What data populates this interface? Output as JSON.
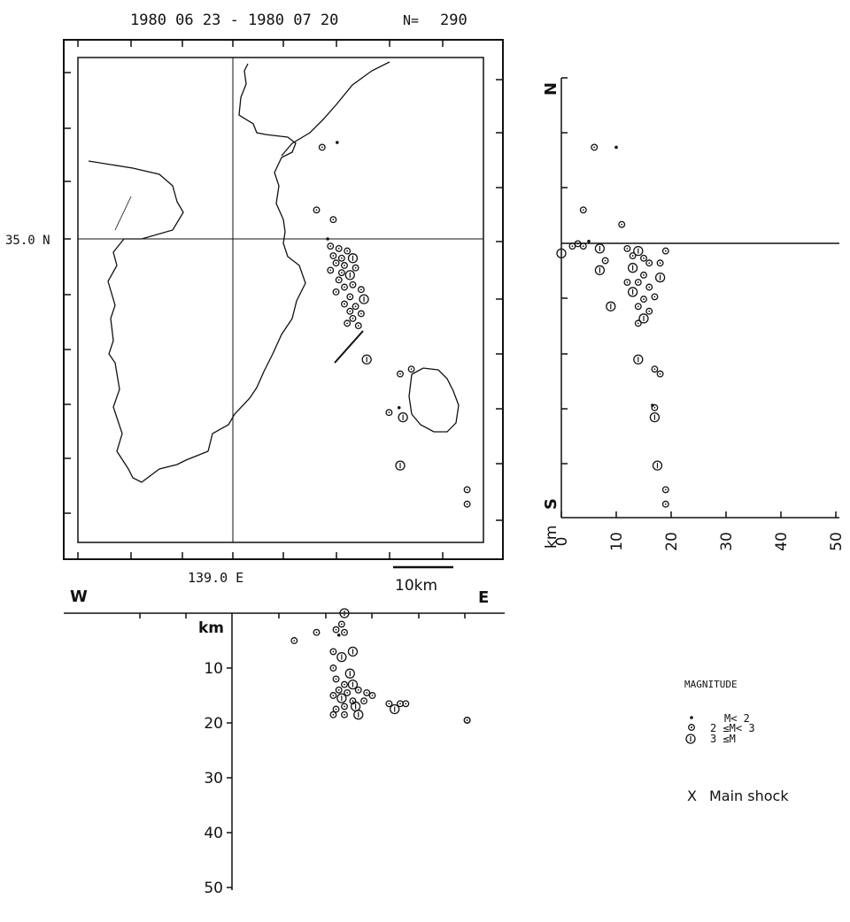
{
  "header": {
    "date_range": "1980 06 23 - 1980 07 20",
    "count_label": "N=",
    "count_value": "290"
  },
  "map": {
    "lat_label": "35.0 N",
    "lon_label": "139.0 E",
    "scale_label": "10km"
  },
  "ns_section": {
    "north_label": "N",
    "south_label": "S",
    "depth_unit": "km",
    "depth_ticks": [
      "0",
      "10",
      "20",
      "30",
      "40",
      "50"
    ]
  },
  "ew_section": {
    "west_label": "W",
    "east_label": "E",
    "depth_unit": "km",
    "depth_ticks": [
      "10",
      "20",
      "30",
      "40",
      "50"
    ]
  },
  "legend": {
    "title": "MAGNITUDE",
    "items": [
      {
        "label": "M< 2",
        "symbol": "dot"
      },
      {
        "label": "2 ≤M< 3",
        "symbol": "small-circle"
      },
      {
        "label": "3 ≤M",
        "symbol": "large-circle"
      }
    ],
    "main_shock_symbol": "X",
    "main_shock_label": "Main shock"
  },
  "chart_data": {
    "type": "scatter",
    "title": "1980 06 23 - 1980 07 20",
    "total_events": 290,
    "map_events": [
      {
        "lon": 139.16,
        "lat": 35.19,
        "mag": "2-3"
      },
      {
        "lon": 139.187,
        "lat": 35.2,
        "mag": "<2"
      },
      {
        "lon": 139.15,
        "lat": 35.06,
        "mag": "2-3"
      },
      {
        "lon": 139.18,
        "lat": 35.04,
        "mag": "2-3"
      },
      {
        "lon": 139.17,
        "lat": 35.0,
        "mag": "<2"
      },
      {
        "lon": 139.175,
        "lat": 34.985,
        "mag": "2-3"
      },
      {
        "lon": 139.19,
        "lat": 34.98,
        "mag": "2-3"
      },
      {
        "lon": 139.205,
        "lat": 34.975,
        "mag": "2-3"
      },
      {
        "lon": 139.18,
        "lat": 34.965,
        "mag": "2-3"
      },
      {
        "lon": 139.195,
        "lat": 34.96,
        "mag": "2-3"
      },
      {
        "lon": 139.215,
        "lat": 34.96,
        "mag": "3+"
      },
      {
        "lon": 139.185,
        "lat": 34.95,
        "mag": "2-3"
      },
      {
        "lon": 139.2,
        "lat": 34.945,
        "mag": "2-3"
      },
      {
        "lon": 139.22,
        "lat": 34.94,
        "mag": "2-3"
      },
      {
        "lon": 139.175,
        "lat": 34.935,
        "mag": "2-3"
      },
      {
        "lon": 139.195,
        "lat": 34.93,
        "mag": "2-3"
      },
      {
        "lon": 139.21,
        "lat": 34.925,
        "mag": "3+"
      },
      {
        "lon": 139.19,
        "lat": 34.915,
        "mag": "2-3"
      },
      {
        "lon": 139.215,
        "lat": 34.905,
        "mag": "2-3"
      },
      {
        "lon": 139.2,
        "lat": 34.9,
        "mag": "2-3"
      },
      {
        "lon": 139.23,
        "lat": 34.895,
        "mag": "2-3"
      },
      {
        "lon": 139.185,
        "lat": 34.89,
        "mag": "2-3"
      },
      {
        "lon": 139.21,
        "lat": 34.88,
        "mag": "2-3"
      },
      {
        "lon": 139.235,
        "lat": 34.875,
        "mag": "3+"
      },
      {
        "lon": 139.2,
        "lat": 34.865,
        "mag": "2-3"
      },
      {
        "lon": 139.22,
        "lat": 34.86,
        "mag": "2-3"
      },
      {
        "lon": 139.21,
        "lat": 34.85,
        "mag": "2-3"
      },
      {
        "lon": 139.23,
        "lat": 34.845,
        "mag": "2-3"
      },
      {
        "lon": 139.215,
        "lat": 34.835,
        "mag": "2-3"
      },
      {
        "lon": 139.205,
        "lat": 34.825,
        "mag": "2-3"
      },
      {
        "lon": 139.225,
        "lat": 34.82,
        "mag": "2-3"
      },
      {
        "lon": 139.24,
        "lat": 34.75,
        "mag": "3+"
      },
      {
        "lon": 139.3,
        "lat": 34.72,
        "mag": "2-3"
      },
      {
        "lon": 139.32,
        "lat": 34.73,
        "mag": "2-3"
      },
      {
        "lon": 139.28,
        "lat": 34.64,
        "mag": "2-3"
      },
      {
        "lon": 139.298,
        "lat": 34.65,
        "mag": "<2"
      },
      {
        "lon": 139.305,
        "lat": 34.63,
        "mag": "3+"
      },
      {
        "lon": 139.3,
        "lat": 34.53,
        "mag": "3+"
      },
      {
        "lon": 139.42,
        "lat": 34.48,
        "mag": "2-3"
      },
      {
        "lon": 139.42,
        "lat": 34.45,
        "mag": "2-3"
      }
    ],
    "ns_section_events": [
      {
        "depth_km": 0,
        "lat": 34.97,
        "mag": "3+"
      },
      {
        "depth_km": 2,
        "lat": 34.985,
        "mag": "2-3"
      },
      {
        "depth_km": 3,
        "lat": 34.99,
        "mag": "2-3"
      },
      {
        "depth_km": 4,
        "lat": 34.985,
        "mag": "2-3"
      },
      {
        "depth_km": 5,
        "lat": 34.995,
        "mag": "<2"
      },
      {
        "depth_km": 4,
        "lat": 35.06,
        "mag": "2-3"
      },
      {
        "depth_km": 6,
        "lat": 35.19,
        "mag": "2-3"
      },
      {
        "depth_km": 10,
        "lat": 35.19,
        "mag": "<2"
      },
      {
        "depth_km": 11,
        "lat": 35.03,
        "mag": "2-3"
      },
      {
        "depth_km": 7,
        "lat": 34.98,
        "mag": "3+"
      },
      {
        "depth_km": 7,
        "lat": 34.935,
        "mag": "3+"
      },
      {
        "depth_km": 8,
        "lat": 34.955,
        "mag": "2-3"
      },
      {
        "depth_km": 9,
        "lat": 34.86,
        "mag": "3+"
      },
      {
        "depth_km": 12,
        "lat": 34.98,
        "mag": "2-3"
      },
      {
        "depth_km": 13,
        "lat": 34.965,
        "mag": "2-3"
      },
      {
        "depth_km": 14,
        "lat": 34.975,
        "mag": "3+"
      },
      {
        "depth_km": 15,
        "lat": 34.96,
        "mag": "2-3"
      },
      {
        "depth_km": 16,
        "lat": 34.95,
        "mag": "2-3"
      },
      {
        "depth_km": 13,
        "lat": 34.94,
        "mag": "3+"
      },
      {
        "depth_km": 15,
        "lat": 34.925,
        "mag": "2-3"
      },
      {
        "depth_km": 14,
        "lat": 34.91,
        "mag": "2-3"
      },
      {
        "depth_km": 16,
        "lat": 34.9,
        "mag": "2-3"
      },
      {
        "depth_km": 13,
        "lat": 34.89,
        "mag": "3+"
      },
      {
        "depth_km": 15,
        "lat": 34.875,
        "mag": "2-3"
      },
      {
        "depth_km": 14,
        "lat": 34.86,
        "mag": "2-3"
      },
      {
        "depth_km": 16,
        "lat": 34.85,
        "mag": "2-3"
      },
      {
        "depth_km": 15,
        "lat": 34.835,
        "mag": "3+"
      },
      {
        "depth_km": 14,
        "lat": 34.825,
        "mag": "2-3"
      },
      {
        "depth_km": 17,
        "lat": 34.88,
        "mag": "2-3"
      },
      {
        "depth_km": 18,
        "lat": 34.95,
        "mag": "2-3"
      },
      {
        "depth_km": 19,
        "lat": 34.975,
        "mag": "2-3"
      },
      {
        "depth_km": 18,
        "lat": 34.92,
        "mag": "3+"
      },
      {
        "depth_km": 12,
        "lat": 34.91,
        "mag": "2-3"
      },
      {
        "depth_km": 14,
        "lat": 34.75,
        "mag": "3+"
      },
      {
        "depth_km": 17,
        "lat": 34.73,
        "mag": "2-3"
      },
      {
        "depth_km": 18,
        "lat": 34.72,
        "mag": "2-3"
      },
      {
        "depth_km": 17,
        "lat": 34.65,
        "mag": "2-3"
      },
      {
        "depth_km": 16.6,
        "lat": 34.655,
        "mag": "<2"
      },
      {
        "depth_km": 17,
        "lat": 34.63,
        "mag": "3+"
      },
      {
        "depth_km": 17.5,
        "lat": 34.53,
        "mag": "3+"
      },
      {
        "depth_km": 19,
        "lat": 34.48,
        "mag": "2-3"
      },
      {
        "depth_km": 19,
        "lat": 34.45,
        "mag": "2-3"
      }
    ],
    "ew_section_events": [
      {
        "lon": 139.2,
        "depth_km": 0,
        "mag": "3+"
      },
      {
        "lon": 139.195,
        "depth_km": 2,
        "mag": "2-3"
      },
      {
        "lon": 139.185,
        "depth_km": 3,
        "mag": "2-3"
      },
      {
        "lon": 139.2,
        "depth_km": 3.5,
        "mag": "2-3"
      },
      {
        "lon": 139.19,
        "depth_km": 4,
        "mag": "<2"
      },
      {
        "lon": 139.15,
        "depth_km": 3.5,
        "mag": "2-3"
      },
      {
        "lon": 139.11,
        "depth_km": 5,
        "mag": "2-3"
      },
      {
        "lon": 139.18,
        "depth_km": 7,
        "mag": "2-3"
      },
      {
        "lon": 139.195,
        "depth_km": 8,
        "mag": "3+"
      },
      {
        "lon": 139.215,
        "depth_km": 7,
        "mag": "3+"
      },
      {
        "lon": 139.18,
        "depth_km": 10,
        "mag": "2-3"
      },
      {
        "lon": 139.21,
        "depth_km": 11,
        "mag": "3+"
      },
      {
        "lon": 139.185,
        "depth_km": 12,
        "mag": "2-3"
      },
      {
        "lon": 139.2,
        "depth_km": 13,
        "mag": "2-3"
      },
      {
        "lon": 139.215,
        "depth_km": 13,
        "mag": "3+"
      },
      {
        "lon": 139.19,
        "depth_km": 14,
        "mag": "2-3"
      },
      {
        "lon": 139.205,
        "depth_km": 14.5,
        "mag": "2-3"
      },
      {
        "lon": 139.225,
        "depth_km": 14,
        "mag": "2-3"
      },
      {
        "lon": 139.18,
        "depth_km": 15,
        "mag": "2-3"
      },
      {
        "lon": 139.195,
        "depth_km": 15.5,
        "mag": "3+"
      },
      {
        "lon": 139.215,
        "depth_km": 16,
        "mag": "2-3"
      },
      {
        "lon": 139.2,
        "depth_km": 17,
        "mag": "2-3"
      },
      {
        "lon": 139.185,
        "depth_km": 17.5,
        "mag": "2-3"
      },
      {
        "lon": 139.22,
        "depth_km": 17,
        "mag": "3+"
      },
      {
        "lon": 139.235,
        "depth_km": 16,
        "mag": "2-3"
      },
      {
        "lon": 139.18,
        "depth_km": 18.5,
        "mag": "2-3"
      },
      {
        "lon": 139.2,
        "depth_km": 18.5,
        "mag": "2-3"
      },
      {
        "lon": 139.225,
        "depth_km": 18.5,
        "mag": "3+"
      },
      {
        "lon": 139.24,
        "depth_km": 14.5,
        "mag": "2-3"
      },
      {
        "lon": 139.25,
        "depth_km": 15,
        "mag": "2-3"
      },
      {
        "lon": 139.28,
        "depth_km": 16.5,
        "mag": "2-3"
      },
      {
        "lon": 139.29,
        "depth_km": 17.5,
        "mag": "3+"
      },
      {
        "lon": 139.3,
        "depth_km": 16.5,
        "mag": "2-3"
      },
      {
        "lon": 139.31,
        "depth_km": 16.5,
        "mag": "2-3"
      },
      {
        "lon": 139.42,
        "depth_km": 19.5,
        "mag": "2-3"
      },
      {
        "lon": 139.42,
        "depth_km": 19.5,
        "mag": "2-3"
      }
    ]
  }
}
